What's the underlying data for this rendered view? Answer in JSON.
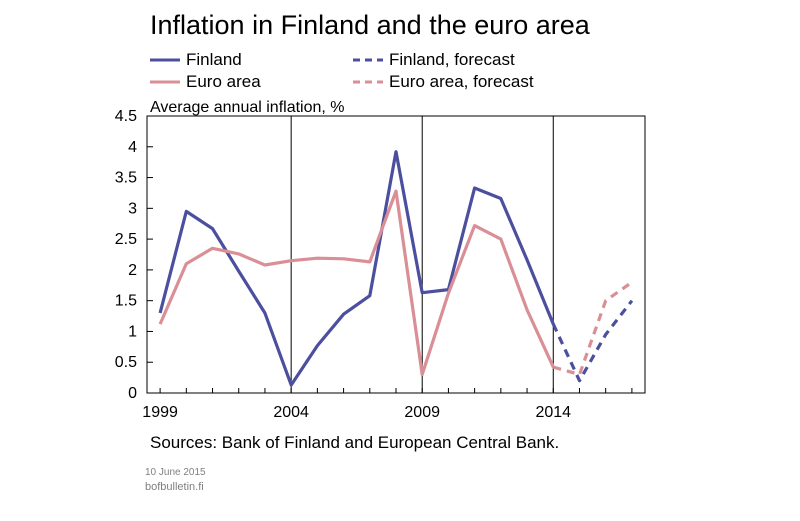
{
  "chart_data": {
    "type": "line",
    "title": "Inflation in Finland and the euro area",
    "ylabel": "Average annual inflation, %",
    "xlabel": "",
    "ylim": [
      0,
      4.5
    ],
    "xlim": [
      1998.5,
      2017.5
    ],
    "y_ticks": [
      "0",
      "0.5",
      "1",
      "1.5",
      "2",
      "2.5",
      "3",
      "3.5",
      "4",
      "4.5"
    ],
    "x_ticks": [
      "1999",
      "2004",
      "2009",
      "2014"
    ],
    "legend_position": "top",
    "grid": "vertical lines at 2004, 2009, 2014",
    "series": [
      {
        "name": "Finland",
        "color": "#4b4f9e",
        "style": "solid",
        "x": [
          1999,
          2000,
          2001,
          2002,
          2003,
          2004,
          2005,
          2006,
          2007,
          2008,
          2009,
          2010,
          2011,
          2012,
          2013,
          2014
        ],
        "y": [
          1.3,
          2.95,
          2.67,
          1.98,
          1.3,
          0.13,
          0.77,
          1.28,
          1.58,
          3.92,
          1.63,
          1.68,
          3.33,
          3.16,
          2.16,
          1.12
        ]
      },
      {
        "name": "Finland, forecast",
        "color": "#4b4f9e",
        "style": "dashed",
        "x": [
          2014,
          2015,
          2016,
          2017
        ],
        "y": [
          1.12,
          0.2,
          0.95,
          1.5
        ]
      },
      {
        "name": "Euro area",
        "color": "#d98f95",
        "style": "solid",
        "x": [
          1999,
          2000,
          2001,
          2002,
          2003,
          2004,
          2005,
          2006,
          2007,
          2008,
          2009,
          2010,
          2011,
          2012,
          2013,
          2014
        ],
        "y": [
          1.12,
          2.1,
          2.35,
          2.26,
          2.08,
          2.15,
          2.19,
          2.18,
          2.13,
          3.28,
          0.3,
          1.62,
          2.72,
          2.5,
          1.35,
          0.42
        ]
      },
      {
        "name": "Euro area, forecast",
        "color": "#d98f95",
        "style": "dashed",
        "x": [
          2014,
          2015,
          2016,
          2017
        ],
        "y": [
          0.42,
          0.3,
          1.5,
          1.8
        ]
      }
    ]
  },
  "footer": {
    "sources": "Sources: Bank of Finland and European Central Bank.",
    "date": "10 June 2015",
    "site": "bofbulletin.fi"
  }
}
